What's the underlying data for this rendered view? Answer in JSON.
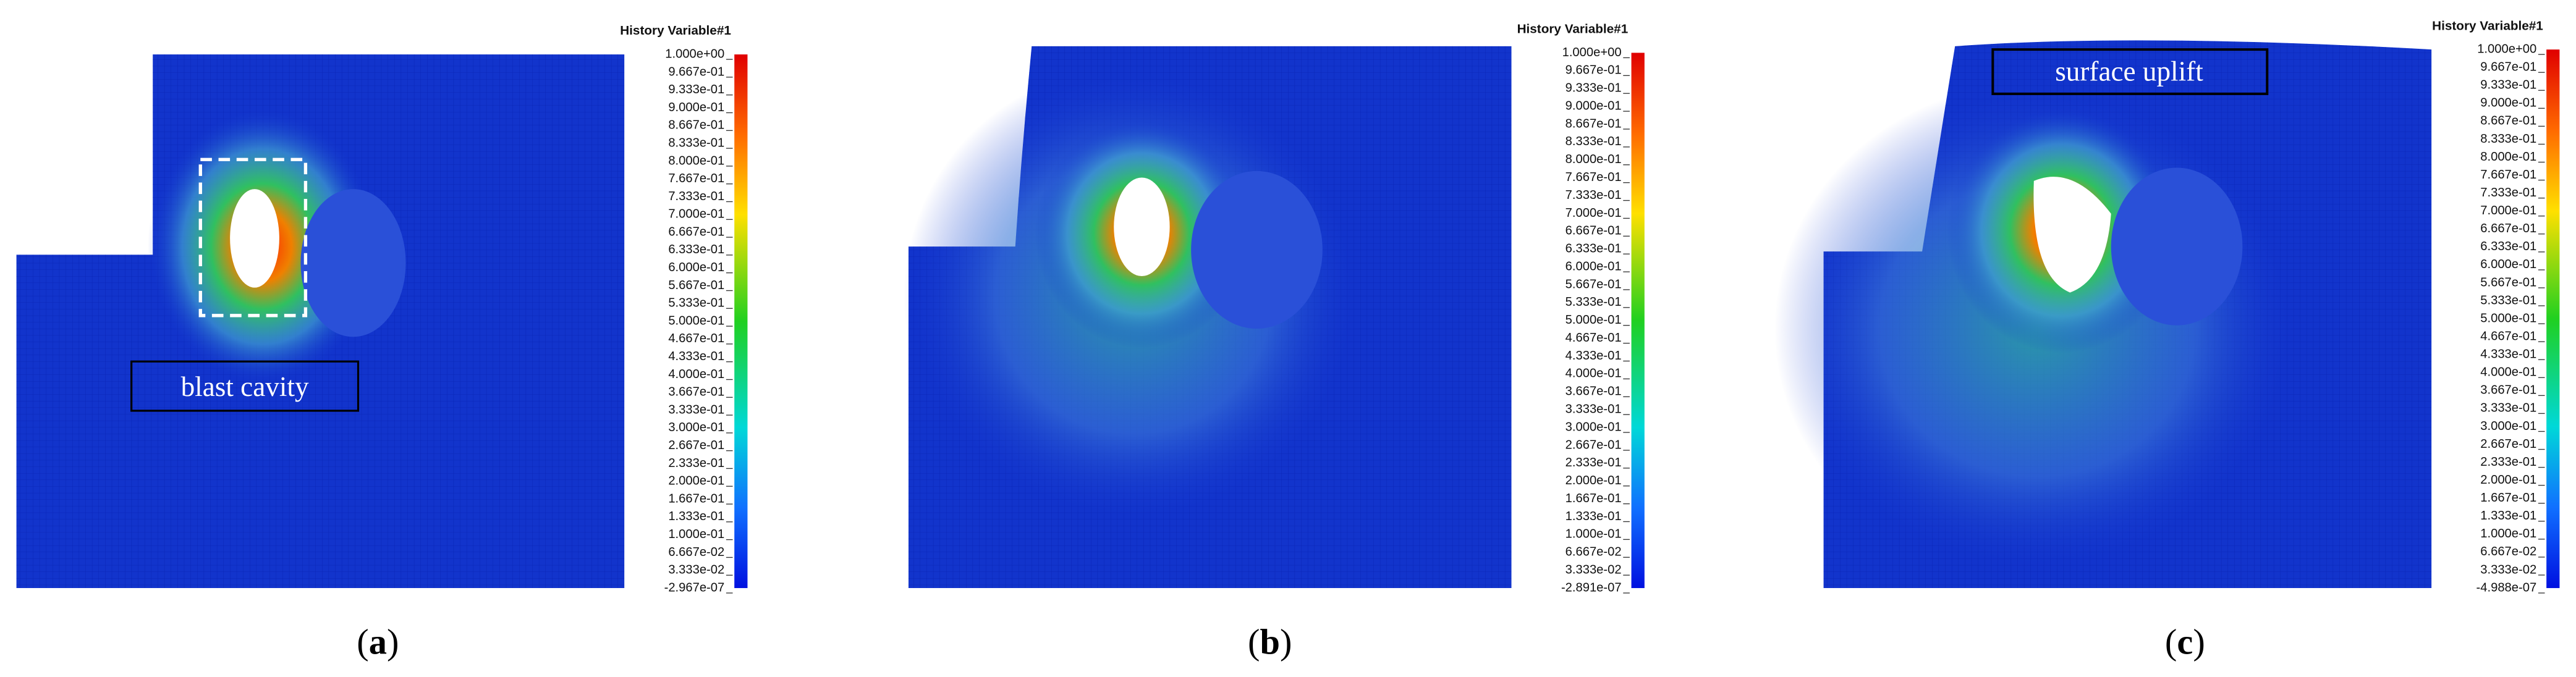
{
  "panels": [
    {
      "legend": {
        "title": "History Variable#1",
        "labels": [
          "1.000e+00",
          "9.667e-01",
          "9.333e-01",
          "9.000e-01",
          "8.667e-01",
          "8.333e-01",
          "8.000e-01",
          "7.667e-01",
          "7.333e-01",
          "7.000e-01",
          "6.667e-01",
          "6.333e-01",
          "6.000e-01",
          "5.667e-01",
          "5.333e-01",
          "5.000e-01",
          "4.667e-01",
          "4.333e-01",
          "4.000e-01",
          "3.667e-01",
          "3.333e-01",
          "3.000e-01",
          "2.667e-01",
          "2.333e-01",
          "2.000e-01",
          "1.667e-01",
          "1.333e-01",
          "1.000e-01",
          "6.667e-02",
          "3.333e-02",
          "-2.967e-07"
        ]
      },
      "annotation": "blast cavity",
      "caption": {
        "open": "(",
        "letter": "a",
        "close": ")"
      }
    },
    {
      "legend": {
        "title": "History Variable#1",
        "labels": [
          "1.000e+00",
          "9.667e-01",
          "9.333e-01",
          "9.000e-01",
          "8.667e-01",
          "8.333e-01",
          "8.000e-01",
          "7.667e-01",
          "7.333e-01",
          "7.000e-01",
          "6.667e-01",
          "6.333e-01",
          "6.000e-01",
          "5.667e-01",
          "5.333e-01",
          "5.000e-01",
          "4.667e-01",
          "4.333e-01",
          "4.000e-01",
          "3.667e-01",
          "3.333e-01",
          "3.000e-01",
          "2.667e-01",
          "2.333e-01",
          "2.000e-01",
          "1.667e-01",
          "1.333e-01",
          "1.000e-01",
          "6.667e-02",
          "3.333e-02",
          "-2.891e-07"
        ]
      },
      "caption": {
        "open": "(",
        "letter": "b",
        "close": ")"
      }
    },
    {
      "legend": {
        "title": "History Variable#1",
        "labels": [
          "1.000e+00",
          "9.667e-01",
          "9.333e-01",
          "9.000e-01",
          "8.667e-01",
          "8.333e-01",
          "8.000e-01",
          "7.667e-01",
          "7.333e-01",
          "7.000e-01",
          "6.667e-01",
          "6.333e-01",
          "6.000e-01",
          "5.667e-01",
          "5.333e-01",
          "5.000e-01",
          "4.667e-01",
          "4.333e-01",
          "4.000e-01",
          "3.667e-01",
          "3.333e-01",
          "3.000e-01",
          "2.667e-01",
          "2.333e-01",
          "2.000e-01",
          "1.667e-01",
          "1.333e-01",
          "1.000e-01",
          "6.667e-02",
          "3.333e-02",
          "-4.988e-07"
        ]
      },
      "annotation": "surface uplift",
      "caption": {
        "open": "(",
        "letter": "c",
        "close": ")"
      }
    }
  ]
}
